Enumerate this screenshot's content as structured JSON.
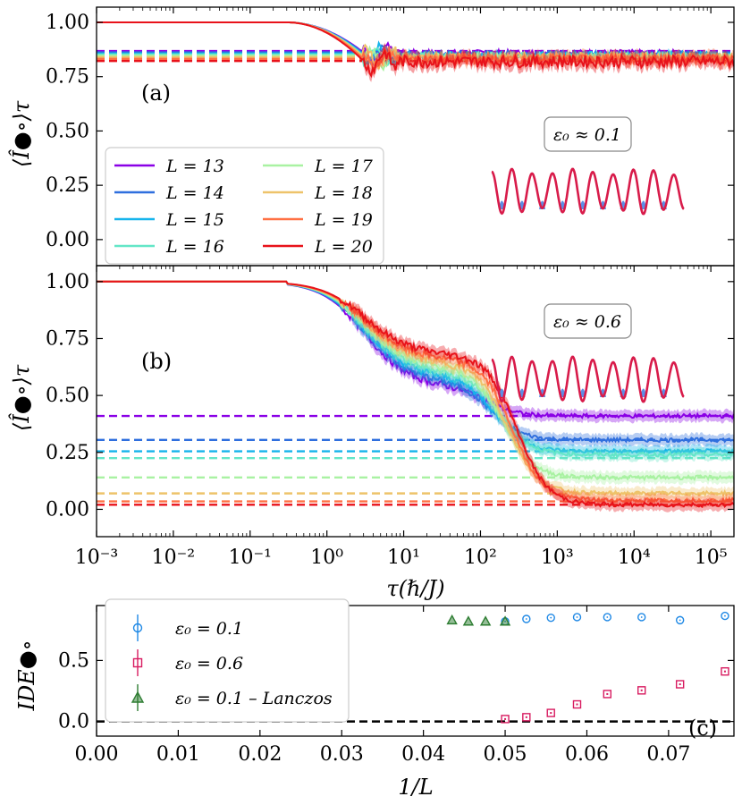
{
  "colors": {
    "L13": "#8a00e6",
    "L14": "#2f6fde",
    "L15": "#15b4ec",
    "L16": "#63e6c7",
    "L17": "#a9f2a2",
    "L18": "#eec36a",
    "L19": "#ff7043",
    "L20": "#e8121a",
    "eps01": "#1e88e5",
    "eps06": "#d81b60",
    "lanczos": "#2e7d32",
    "wave": "#d81b4a",
    "bump": "#5c8ee6"
  },
  "chart_data": [
    {
      "type": "line",
      "panel": "a",
      "panel_label": "(a)",
      "annotation": "ε₀ ≈ 0.1",
      "xscale": "log",
      "xlim": [
        0.001,
        200000
      ],
      "ylim": [
        -0.12,
        1.07
      ],
      "ylabel": "⟨Î●∘⟩τ",
      "yticks": [
        "0.00",
        "0.25",
        "0.50",
        "0.75",
        "1.00"
      ],
      "legend": [
        "L = 13",
        "L = 14",
        "L = 15",
        "L = 16",
        "L = 17",
        "L = 18",
        "L = 19",
        "L = 20"
      ],
      "series": [
        {
          "name": "L = 13",
          "color_key": "L13",
          "plateau": 0.868,
          "late": 0.86,
          "noise": 0.012
        },
        {
          "name": "L = 14",
          "color_key": "L14",
          "plateau": 0.862,
          "late": 0.855,
          "noise": 0.013
        },
        {
          "name": "L = 15",
          "color_key": "L15",
          "plateau": 0.856,
          "late": 0.85,
          "noise": 0.014
        },
        {
          "name": "L = 16",
          "color_key": "L16",
          "plateau": 0.852,
          "late": 0.845,
          "noise": 0.015
        },
        {
          "name": "L = 17",
          "color_key": "L17",
          "plateau": 0.846,
          "late": 0.84,
          "noise": 0.016
        },
        {
          "name": "L = 18",
          "color_key": "L18",
          "plateau": 0.84,
          "late": 0.84,
          "noise": 0.018
        },
        {
          "name": "L = 19",
          "color_key": "L19",
          "plateau": 0.832,
          "late": 0.83,
          "noise": 0.02
        },
        {
          "name": "L = 20",
          "color_key": "L20",
          "plateau": 0.822,
          "late": 0.82,
          "noise": 0.025
        }
      ]
    },
    {
      "type": "line",
      "panel": "b",
      "panel_label": "(b)",
      "annotation": "ε₀ ≈ 0.6",
      "xscale": "log",
      "xlim": [
        0.001,
        200000
      ],
      "ylim": [
        -0.12,
        1.07
      ],
      "ylabel": "⟨Î●∘⟩τ",
      "xlabel": "τ(ℏ/J)",
      "yticks": [
        "0.00",
        "0.25",
        "0.50",
        "0.75",
        "1.00"
      ],
      "xticks": [
        "10⁻³",
        "10⁻²",
        "10⁻¹",
        "10⁰",
        "10¹",
        "10²",
        "10³",
        "10⁴",
        "10⁵"
      ],
      "series": [
        {
          "name": "L = 13",
          "color_key": "L13",
          "plateau": 0.41,
          "late": 0.41,
          "tc": 120
        },
        {
          "name": "L = 14",
          "color_key": "L14",
          "plateau": 0.305,
          "late": 0.305,
          "tc": 140
        },
        {
          "name": "L = 15",
          "color_key": "L15",
          "plateau": 0.255,
          "late": 0.255,
          "tc": 160
        },
        {
          "name": "L = 16",
          "color_key": "L16",
          "plateau": 0.225,
          "late": 0.24,
          "tc": 180
        },
        {
          "name": "L = 17",
          "color_key": "L17",
          "plateau": 0.14,
          "late": 0.14,
          "tc": 200
        },
        {
          "name": "L = 18",
          "color_key": "L18",
          "plateau": 0.07,
          "late": 0.07,
          "tc": 230
        },
        {
          "name": "L = 19",
          "color_key": "L19",
          "plateau": 0.035,
          "late": 0.04,
          "tc": 260
        },
        {
          "name": "L = 20",
          "color_key": "L20",
          "plateau": 0.02,
          "late": 0.02,
          "tc": 300
        }
      ]
    },
    {
      "type": "scatter",
      "panel": "c",
      "panel_label": "(c)",
      "xlim": [
        0.0,
        0.078
      ],
      "ylim": [
        -0.12,
        0.95
      ],
      "xlabel": "1/L",
      "ylabel": "IDE●∘",
      "xticks": [
        "0.00",
        "0.01",
        "0.02",
        "0.03",
        "0.04",
        "0.05",
        "0.06",
        "0.07"
      ],
      "yticks": [
        "0.0",
        "0.5"
      ],
      "reference_line": 0.0,
      "series": [
        {
          "name": "ε₀ = 0.1",
          "color_key": "eps01",
          "marker": "circle",
          "x": [
            0.05,
            0.0526,
            0.0556,
            0.0588,
            0.0625,
            0.0667,
            0.0714,
            0.0769
          ],
          "y": [
            0.82,
            0.84,
            0.85,
            0.855,
            0.855,
            0.855,
            0.83,
            0.865
          ]
        },
        {
          "name": "ε₀ = 0.6",
          "color_key": "eps06",
          "marker": "square",
          "x": [
            0.05,
            0.0526,
            0.0556,
            0.0588,
            0.0625,
            0.0667,
            0.0714,
            0.0769
          ],
          "y": [
            0.02,
            0.035,
            0.07,
            0.14,
            0.225,
            0.255,
            0.305,
            0.41
          ]
        },
        {
          "name": "ε₀ = 0.1 – Lanczos",
          "color_key": "lanczos",
          "marker": "triangle",
          "x": [
            0.0435,
            0.0455,
            0.0476,
            0.05
          ],
          "y": [
            0.83,
            0.82,
            0.82,
            0.82
          ]
        }
      ]
    }
  ]
}
